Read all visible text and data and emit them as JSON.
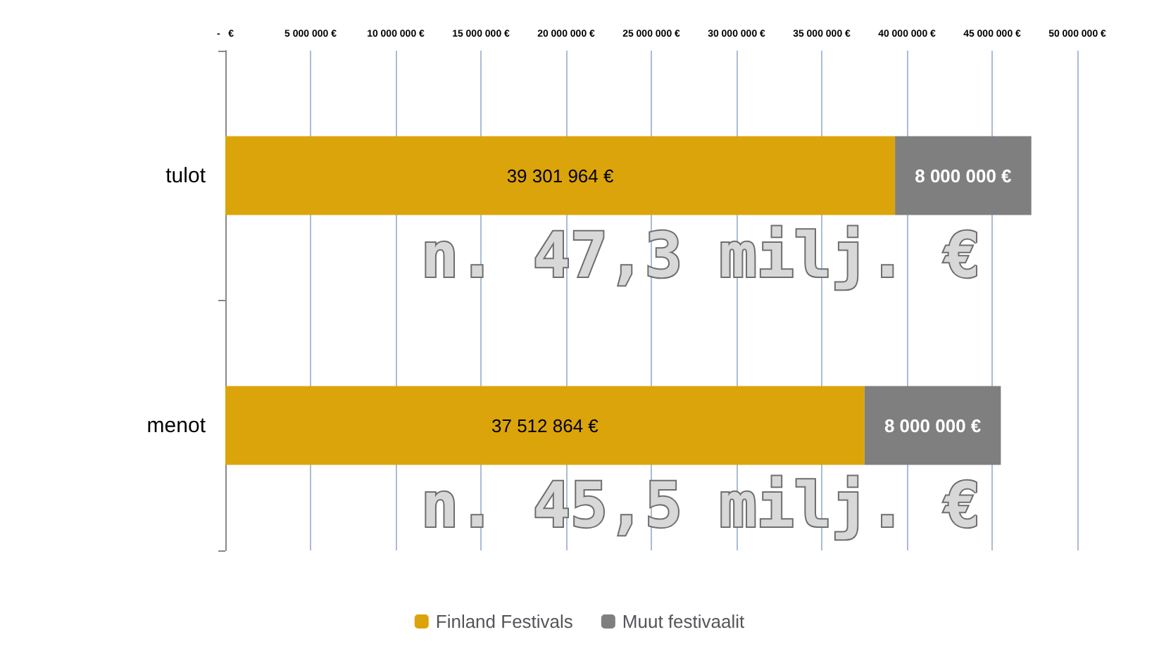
{
  "chart_data": {
    "type": "bar",
    "orientation": "horizontal",
    "stacked": true,
    "categories": [
      "tulot",
      "menot"
    ],
    "series": [
      {
        "name": "Finland Festivals",
        "color": "#dba40a",
        "values": [
          39301964,
          37512864
        ],
        "value_labels": [
          "39 301 964 €",
          "37 512 864 €"
        ]
      },
      {
        "name": "Muut festivaalit",
        "color": "#7f7f7f",
        "values": [
          8000000,
          8000000
        ],
        "value_labels": [
          "8 000 000 €",
          "8 000 000 €"
        ]
      }
    ],
    "xlim": [
      0,
      50000000
    ],
    "xticks": [
      {
        "value": 0,
        "label": "-   €"
      },
      {
        "value": 5000000,
        "label": "5 000 000 €"
      },
      {
        "value": 10000000,
        "label": "10 000 000 €"
      },
      {
        "value": 15000000,
        "label": "15 000 000 €"
      },
      {
        "value": 20000000,
        "label": "20 000 000 €"
      },
      {
        "value": 25000000,
        "label": "25 000 000 €"
      },
      {
        "value": 30000000,
        "label": "30 000 000 €"
      },
      {
        "value": 35000000,
        "label": "35 000 000 €"
      },
      {
        "value": 40000000,
        "label": "40 000 000 €"
      },
      {
        "value": 45000000,
        "label": "45 000 000 €"
      },
      {
        "value": 50000000,
        "label": "50 000 000 €"
      }
    ],
    "grid": "x",
    "legend": "bottom",
    "annotations": [
      "n. 47,3 milj. €",
      "n. 45,5 milj. €"
    ]
  }
}
